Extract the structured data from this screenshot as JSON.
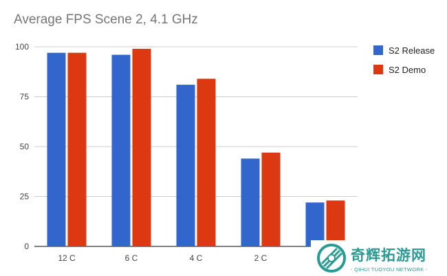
{
  "chart_data": {
    "type": "bar",
    "title": "Average FPS Scene 2, 4.1 GHz",
    "categories": [
      "12 C",
      "6 C",
      "4 C",
      "2 C",
      ""
    ],
    "series": [
      {
        "name": "S2 Release",
        "color": "#3366cc",
        "values": [
          97,
          96,
          81,
          44,
          22
        ]
      },
      {
        "name": "S2 Demo",
        "color": "#dc3912",
        "values": [
          97,
          99,
          84,
          47,
          23
        ]
      }
    ],
    "y_ticks": [
      0,
      25,
      50,
      75,
      100
    ],
    "ylim": [
      0,
      100
    ],
    "xlabel": "",
    "ylabel": "",
    "legend_position": "right"
  },
  "watermark": {
    "name": "奇辉拓游网",
    "subtitle": "- QIHUI TUOYOU NETWORK -",
    "color": "#2a9a92"
  }
}
